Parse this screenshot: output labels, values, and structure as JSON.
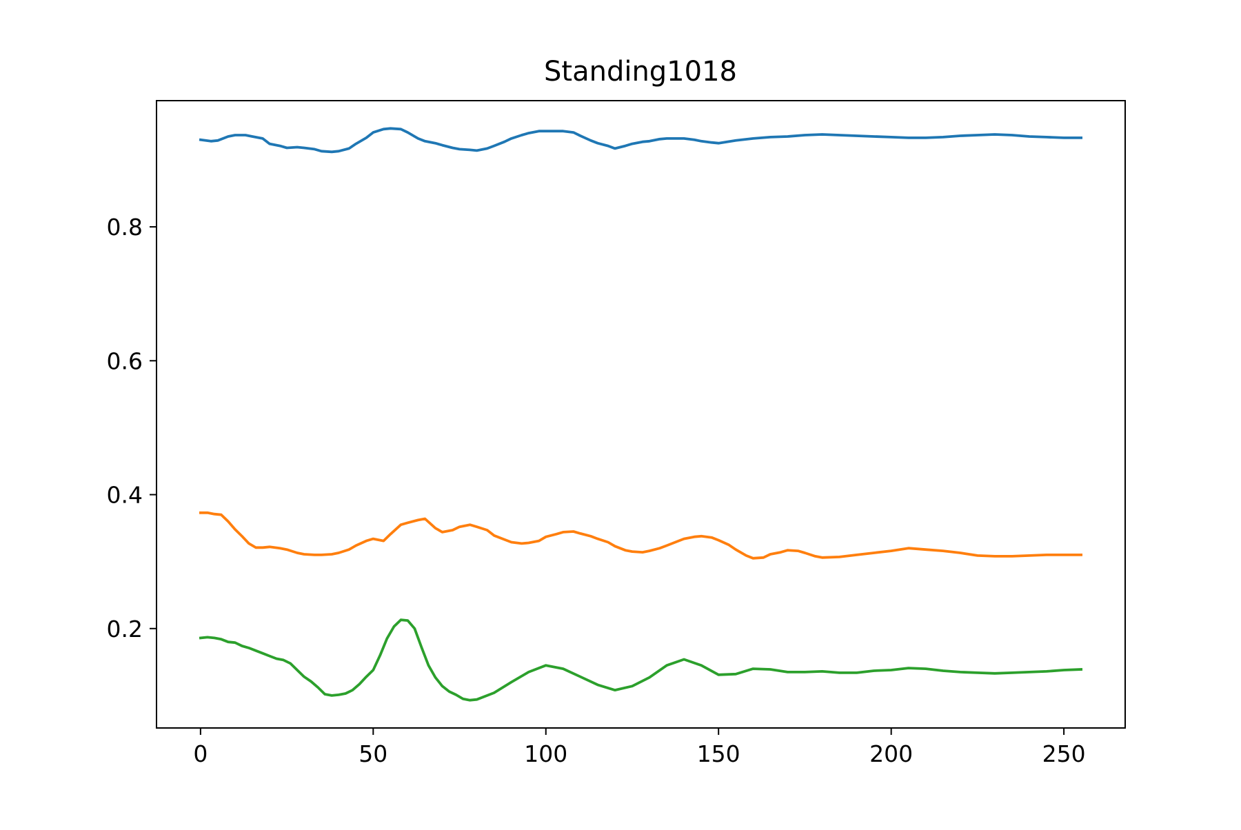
{
  "chart_data": {
    "type": "line",
    "title": "Standing1018",
    "xlabel": "",
    "ylabel": "",
    "xlim": [
      -12.75,
      267.75
    ],
    "ylim": [
      0.0515,
      0.9885
    ],
    "xticks": [
      0,
      50,
      100,
      150,
      200,
      250
    ],
    "yticks": [
      0.2,
      0.4,
      0.6,
      0.8
    ],
    "xtick_labels": [
      "0",
      "50",
      "100",
      "150",
      "200",
      "250"
    ],
    "ytick_labels": [
      "0.2",
      "0.4",
      "0.6",
      "0.8"
    ],
    "grid": false,
    "legend": "none",
    "colors": [
      "#1f77b4",
      "#ff7f0e",
      "#2ca02c"
    ],
    "series": [
      {
        "x": [
          0,
          3,
          5,
          8,
          10,
          13,
          15,
          18,
          20,
          23,
          25,
          28,
          30,
          33,
          35,
          38,
          40,
          43,
          45,
          48,
          50,
          53,
          55,
          58,
          60,
          63,
          65,
          68,
          70,
          73,
          75,
          78,
          80,
          83,
          85,
          88,
          90,
          93,
          95,
          98,
          100,
          103,
          105,
          108,
          110,
          113,
          115,
          118,
          120,
          123,
          125,
          128,
          130,
          133,
          135,
          138,
          140,
          143,
          145,
          148,
          150,
          155,
          160,
          165,
          170,
          175,
          180,
          185,
          190,
          195,
          200,
          205,
          210,
          215,
          220,
          225,
          230,
          235,
          240,
          245,
          250,
          255
        ],
        "values": [
          0.93,
          0.928,
          0.929,
          0.935,
          0.937,
          0.937,
          0.935,
          0.932,
          0.924,
          0.921,
          0.918,
          0.919,
          0.918,
          0.916,
          0.913,
          0.912,
          0.913,
          0.917,
          0.924,
          0.933,
          0.941,
          0.946,
          0.947,
          0.946,
          0.941,
          0.932,
          0.928,
          0.925,
          0.922,
          0.918,
          0.916,
          0.915,
          0.914,
          0.917,
          0.921,
          0.927,
          0.932,
          0.937,
          0.94,
          0.943,
          0.943,
          0.943,
          0.943,
          0.941,
          0.936,
          0.929,
          0.925,
          0.921,
          0.917,
          0.921,
          0.924,
          0.927,
          0.928,
          0.931,
          0.932,
          0.932,
          0.932,
          0.93,
          0.928,
          0.926,
          0.925,
          0.929,
          0.932,
          0.934,
          0.935,
          0.937,
          0.938,
          0.937,
          0.936,
          0.935,
          0.934,
          0.933,
          0.933,
          0.934,
          0.936,
          0.937,
          0.938,
          0.937,
          0.935,
          0.934,
          0.933,
          0.933
        ]
      },
      {
        "x": [
          0,
          2,
          4,
          6,
          8,
          10,
          12,
          14,
          16,
          18,
          20,
          23,
          25,
          28,
          30,
          33,
          35,
          38,
          40,
          43,
          45,
          48,
          50,
          53,
          55,
          58,
          60,
          63,
          65,
          68,
          70,
          73,
          75,
          78,
          80,
          83,
          85,
          88,
          90,
          93,
          95,
          98,
          100,
          103,
          105,
          108,
          110,
          113,
          115,
          118,
          120,
          123,
          125,
          128,
          130,
          133,
          135,
          138,
          140,
          143,
          145,
          148,
          150,
          153,
          155,
          158,
          160,
          163,
          165,
          168,
          170,
          173,
          175,
          178,
          180,
          185,
          190,
          195,
          200,
          205,
          210,
          215,
          220,
          225,
          230,
          235,
          240,
          245,
          250,
          255
        ],
        "values": [
          0.373,
          0.373,
          0.371,
          0.37,
          0.36,
          0.348,
          0.338,
          0.327,
          0.321,
          0.321,
          0.322,
          0.32,
          0.318,
          0.313,
          0.311,
          0.31,
          0.31,
          0.311,
          0.313,
          0.318,
          0.324,
          0.331,
          0.334,
          0.331,
          0.341,
          0.355,
          0.358,
          0.362,
          0.364,
          0.35,
          0.344,
          0.347,
          0.352,
          0.355,
          0.352,
          0.347,
          0.339,
          0.333,
          0.329,
          0.327,
          0.328,
          0.331,
          0.337,
          0.341,
          0.344,
          0.345,
          0.342,
          0.338,
          0.334,
          0.329,
          0.323,
          0.317,
          0.315,
          0.314,
          0.316,
          0.32,
          0.324,
          0.33,
          0.334,
          0.337,
          0.338,
          0.336,
          0.332,
          0.325,
          0.318,
          0.309,
          0.305,
          0.306,
          0.311,
          0.314,
          0.317,
          0.316,
          0.313,
          0.308,
          0.306,
          0.307,
          0.31,
          0.313,
          0.316,
          0.32,
          0.318,
          0.316,
          0.313,
          0.309,
          0.308,
          0.308,
          0.309,
          0.31,
          0.31,
          0.31
        ]
      },
      {
        "x": [
          0,
          2,
          4,
          6,
          8,
          10,
          12,
          14,
          16,
          18,
          20,
          22,
          24,
          26,
          28,
          30,
          32,
          34,
          36,
          38,
          40,
          42,
          44,
          46,
          48,
          50,
          52,
          54,
          56,
          58,
          60,
          62,
          64,
          66,
          68,
          70,
          72,
          74,
          76,
          78,
          80,
          85,
          90,
          95,
          100,
          105,
          110,
          115,
          120,
          125,
          130,
          135,
          140,
          145,
          150,
          155,
          160,
          165,
          170,
          175,
          180,
          185,
          190,
          195,
          200,
          205,
          210,
          215,
          220,
          225,
          230,
          235,
          240,
          245,
          250,
          255
        ],
        "values": [
          0.186,
          0.187,
          0.186,
          0.184,
          0.18,
          0.179,
          0.174,
          0.171,
          0.167,
          0.163,
          0.159,
          0.155,
          0.153,
          0.148,
          0.138,
          0.128,
          0.121,
          0.112,
          0.102,
          0.1,
          0.101,
          0.103,
          0.108,
          0.117,
          0.128,
          0.138,
          0.16,
          0.185,
          0.203,
          0.213,
          0.212,
          0.2,
          0.172,
          0.145,
          0.127,
          0.114,
          0.106,
          0.101,
          0.095,
          0.093,
          0.094,
          0.104,
          0.12,
          0.135,
          0.145,
          0.14,
          0.128,
          0.116,
          0.108,
          0.114,
          0.127,
          0.145,
          0.154,
          0.145,
          0.131,
          0.132,
          0.14,
          0.139,
          0.135,
          0.135,
          0.136,
          0.134,
          0.134,
          0.137,
          0.138,
          0.141,
          0.14,
          0.137,
          0.135,
          0.134,
          0.133,
          0.134,
          0.135,
          0.136,
          0.138,
          0.139
        ]
      }
    ]
  }
}
